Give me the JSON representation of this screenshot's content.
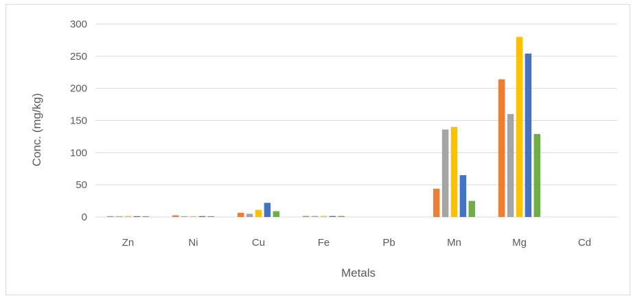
{
  "chart_data": {
    "type": "bar",
    "categories": [
      "Zn",
      "Ni",
      "Cu",
      "Fe",
      "Pb",
      "Mn",
      "Mg",
      "Cd"
    ],
    "series": [
      {
        "color": "#ed7d31",
        "values": [
          0.4,
          2.6,
          6.5,
          1.5,
          0.0,
          44,
          214,
          0.0
        ]
      },
      {
        "color": "#a5a5a5",
        "values": [
          1.0,
          0.5,
          5.0,
          1.5,
          0.0,
          136,
          160,
          0.0
        ]
      },
      {
        "color": "#ffc000",
        "values": [
          1.5,
          1.2,
          11,
          1.5,
          0.0,
          140,
          280,
          0.0
        ]
      },
      {
        "color": "#4472c4",
        "values": [
          0.3,
          0.2,
          22,
          1.5,
          0.0,
          65,
          254,
          0.0
        ]
      },
      {
        "color": "#70ad47",
        "values": [
          0.3,
          0.1,
          9,
          1.5,
          0.0,
          25,
          129,
          0.0
        ]
      }
    ],
    "yticks": [
      "0",
      "50",
      "100",
      "150",
      "200",
      "250",
      "300"
    ],
    "ylim": [
      0,
      300
    ],
    "xlabel": "Metals",
    "ylabel": "Conc. (mg/kg)",
    "grid": true,
    "legend": "none"
  }
}
